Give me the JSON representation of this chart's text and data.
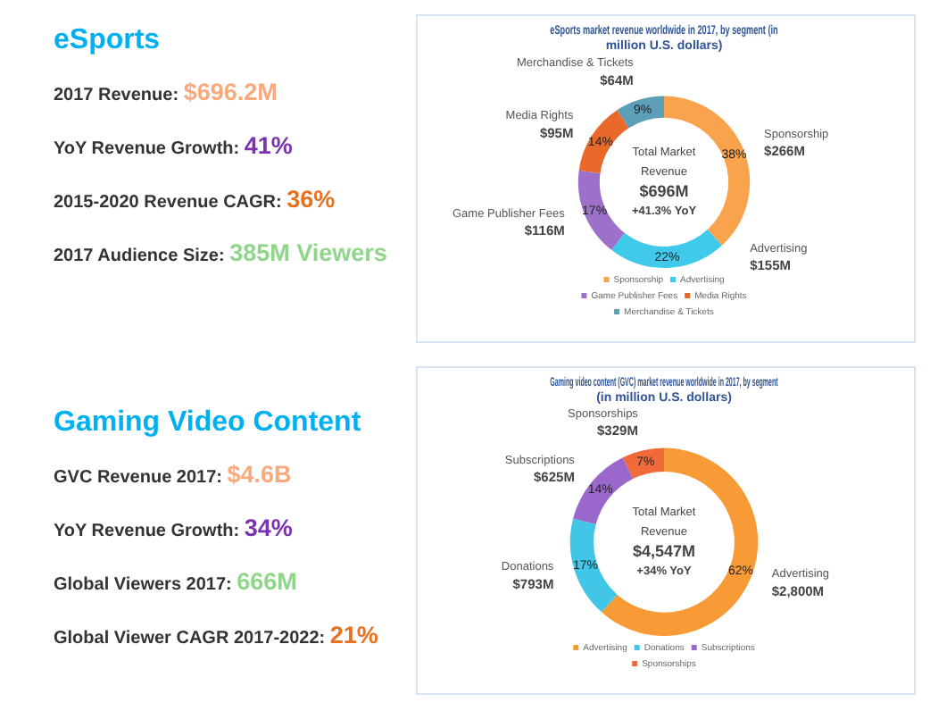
{
  "chart_data": [
    {
      "type": "other",
      "title": "eSports",
      "annotations": [
        "2017 Revenue: $696.2M",
        "YoY Revenue Growth: 41%",
        "2015-2020 Revenue CAGR: 36%",
        "2017 Audience Size: 385M Viewers"
      ],
      "colors": [
        "#f9a97c",
        "#7b32b0",
        "#e8701e",
        "#8fd68a"
      ]
    },
    {
      "type": "donut",
      "title": "eSports market revenue worldwide in 2017, by segment (in million U.S. dollars)",
      "categories": [
        "Sponsorship",
        "Advertising",
        "Game Publisher Fees",
        "Media Rights",
        "Merchandise & Tickets"
      ],
      "values": [
        266,
        155,
        116,
        95,
        64
      ],
      "value_labels": [
        "$266M",
        "$155M",
        "$116M",
        "$95M",
        "$64M"
      ],
      "colors": [
        "#f9a44c",
        "#3fc9ea",
        "#9d70c9",
        "#e8692a",
        "#5c9fb6"
      ],
      "legend": "bottom",
      "annotations": [
        "Total Market Revenue",
        "$696M",
        "+41.3% YoY",
        {
          "text": "38%",
          "x": "Sponsorship"
        },
        {
          "text": "22%",
          "x": "Advertising"
        },
        {
          "text": "17%",
          "x": "Game Publisher Fees"
        },
        {
          "text": "14%",
          "x": "Media Rights"
        },
        {
          "text": "9%",
          "x": "Merchandise & Tickets"
        }
      ]
    },
    {
      "type": "other",
      "title": "Gaming Video Content",
      "annotations": [
        "GVC Revenue 2017: $4.6B",
        "YoY Revenue Growth: 34%",
        "Global Viewers 2017: 666M",
        "Global Viewer CAGR 2017-2022: 21%"
      ],
      "colors": [
        "#f9a97c",
        "#7b32b0",
        "#8fd68a",
        "#e8701e"
      ]
    },
    {
      "type": "donut",
      "title": "Gaming video content (GVC) market revenue worldwide in 2017, by segment (in million U.S. dollars)",
      "categories": [
        "Advertising",
        "Donations",
        "Subscriptions",
        "Sponsorships"
      ],
      "values": [
        2800,
        793,
        625,
        329
      ],
      "value_labels": [
        "$2,800M",
        "$793M",
        "$625M",
        "$329M"
      ],
      "colors": [
        "#f89a36",
        "#42c6e8",
        "#9a68cc",
        "#f06a3a"
      ],
      "legend": "bottom",
      "annotations": [
        "Total Market Revenue",
        "$4,547M",
        "+34% YoY",
        {
          "text": "62%",
          "x": "Advertising"
        },
        {
          "text": "17%",
          "x": "Donations"
        },
        {
          "text": "14%",
          "x": "Subscriptions"
        },
        {
          "text": "7%",
          "x": "Sponsorships"
        }
      ]
    }
  ]
}
